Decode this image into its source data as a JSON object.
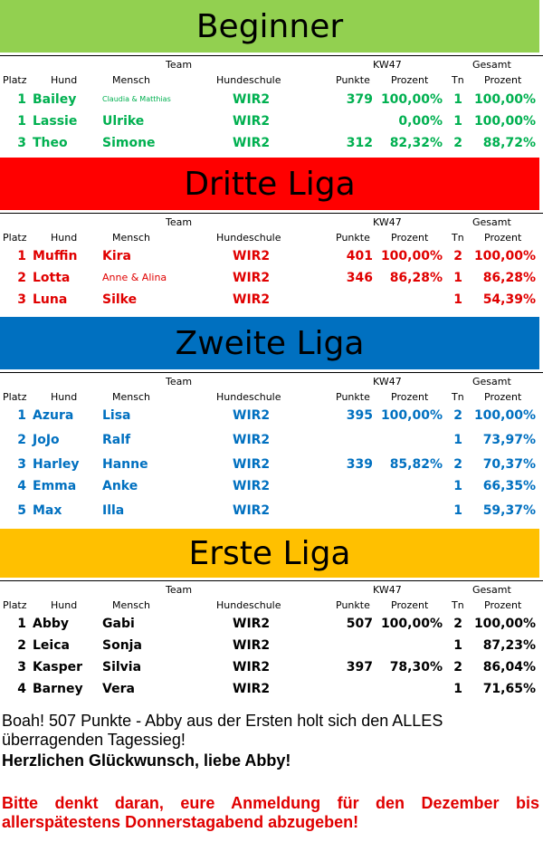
{
  "headers": {
    "team": "Team",
    "kw": "KW47",
    "gesamt": "Gesamt",
    "platz": "Platz",
    "hund": "Hund",
    "mensch": "Mensch",
    "hundeschule": "Hundeschule",
    "punkte": "Punkte",
    "prozent": "Prozent",
    "tn": "Tn",
    "prozent2": "Prozent"
  },
  "leagues": [
    {
      "title": "Beginner",
      "banner_color": "#92d050",
      "text_color": "#00b050",
      "rows": [
        {
          "platz": "1",
          "hund": "Bailey",
          "mensch": "Claudia & Matthias",
          "schule": "WIR2",
          "punkte": "379",
          "prozent": "100,00%",
          "tn": "1",
          "gesamt": "100,00%"
        },
        {
          "platz": "1",
          "hund": "Lassie",
          "mensch": "Ulrike",
          "schule": "WIR2",
          "punkte": "",
          "prozent": "0,00%",
          "tn": "1",
          "gesamt": "100,00%"
        },
        {
          "platz": "3",
          "hund": "Theo",
          "mensch": "Simone",
          "schule": "WIR2",
          "punkte": "312",
          "prozent": "82,32%",
          "tn": "2",
          "gesamt": "88,72%"
        }
      ]
    },
    {
      "title": "Dritte Liga",
      "banner_color": "#ff0000",
      "text_color": "#e00000",
      "rows": [
        {
          "platz": "1",
          "hund": "Muffin",
          "mensch": "Kira",
          "schule": "WIR2",
          "punkte": "401",
          "prozent": "100,00%",
          "tn": "2",
          "gesamt": "100,00%"
        },
        {
          "platz": "2",
          "hund": "Lotta",
          "mensch": "Anne & Alina",
          "schule": "WIR2",
          "punkte": "346",
          "prozent": "86,28%",
          "tn": "1",
          "gesamt": "86,28%"
        },
        {
          "platz": "3",
          "hund": "Luna",
          "mensch": "Silke",
          "schule": "WIR2",
          "punkte": "",
          "prozent": "",
          "tn": "1",
          "gesamt": "54,39%"
        }
      ]
    },
    {
      "title": "Zweite Liga",
      "banner_color": "#0070c0",
      "text_color": "#0070c0",
      "rows": [
        {
          "platz": "1",
          "hund": "Azura",
          "mensch": "Lisa",
          "schule": "WIR2",
          "punkte": "395",
          "prozent": "100,00%",
          "tn": "2",
          "gesamt": "100,00%"
        },
        {
          "platz": "2",
          "hund": "JoJo",
          "mensch": "Ralf",
          "schule": "WIR2",
          "punkte": "",
          "prozent": "",
          "tn": "1",
          "gesamt": "73,97%"
        },
        {
          "platz": "3",
          "hund": "Harley",
          "mensch": "Hanne",
          "schule": "WIR2",
          "punkte": "339",
          "prozent": "85,82%",
          "tn": "2",
          "gesamt": "70,37%"
        },
        {
          "platz": "4",
          "hund": "Emma",
          "mensch": "Anke",
          "schule": "WIR2",
          "punkte": "",
          "prozent": "",
          "tn": "1",
          "gesamt": "66,35%"
        },
        {
          "platz": "5",
          "hund": "Max",
          "mensch": "Illa",
          "schule": "WIR2",
          "punkte": "",
          "prozent": "",
          "tn": "1",
          "gesamt": "59,37%"
        }
      ]
    },
    {
      "title": "Erste Liga",
      "banner_color": "#ffc000",
      "text_color": "#000000",
      "rows": [
        {
          "platz": "1",
          "hund": "Abby",
          "mensch": "Gabi",
          "schule": "WIR2",
          "punkte": "507",
          "prozent": "100,00%",
          "tn": "2",
          "gesamt": "100,00%"
        },
        {
          "platz": "2",
          "hund": "Leica",
          "mensch": "Sonja",
          "schule": "WIR2",
          "punkte": "",
          "prozent": "",
          "tn": "1",
          "gesamt": "87,23%"
        },
        {
          "platz": "3",
          "hund": "Kasper",
          "mensch": "Silvia",
          "schule": "WIR2",
          "punkte": "397",
          "prozent": "78,30%",
          "tn": "2",
          "gesamt": "86,04%"
        },
        {
          "platz": "4",
          "hund": "Barney",
          "mensch": "Vera",
          "schule": "WIR2",
          "punkte": "",
          "prozent": "",
          "tn": "1",
          "gesamt": "71,65%"
        }
      ]
    }
  ],
  "notes": {
    "line1": "Boah! 507 Punkte - Abby aus der Ersten holt sich den ALLES überragenden Tagessieg!",
    "line2": "Herzlichen Glückwunsch, liebe Abby!",
    "line3": "Bitte denkt daran, eure Anmeldung für den Dezember bis allerspätestens Donnerstagabend abzugeben!",
    "line3_color": "#e00000"
  }
}
